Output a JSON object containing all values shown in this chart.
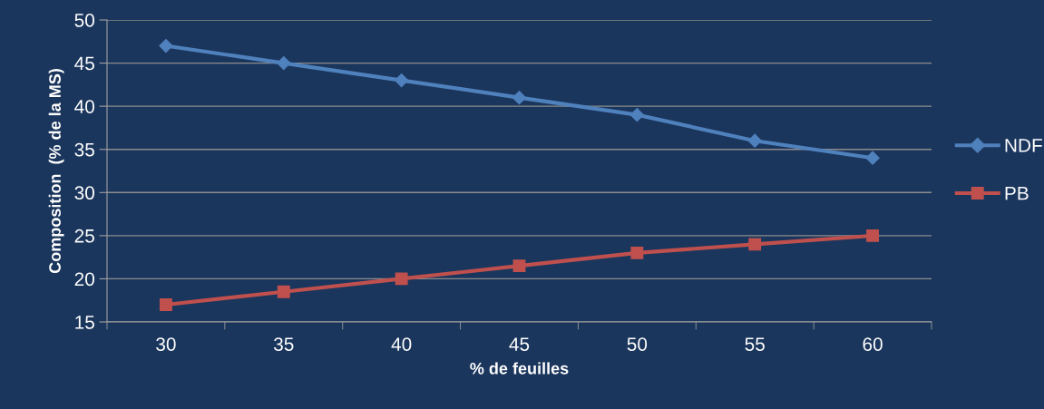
{
  "chart_data": {
    "type": "line",
    "xlabel": "% de feuilles",
    "ylabel": "Composition  (% de la MS)",
    "categories": [
      "30",
      "35",
      "40",
      "45",
      "50",
      "55",
      "60"
    ],
    "series": [
      {
        "name": "NDF",
        "color": "#4f81bd",
        "marker": "diamond",
        "values": [
          47,
          45,
          43,
          41,
          39,
          36,
          34
        ]
      },
      {
        "name": "PB",
        "color": "#c0504d",
        "marker": "square",
        "values": [
          17,
          18.5,
          20,
          21.5,
          23,
          24,
          25
        ]
      }
    ],
    "ylim": [
      15,
      50
    ],
    "yticks": [
      15,
      20,
      25,
      30,
      35,
      40,
      45,
      50
    ],
    "grid": "y",
    "legend": "right",
    "line_style": "solid"
  }
}
